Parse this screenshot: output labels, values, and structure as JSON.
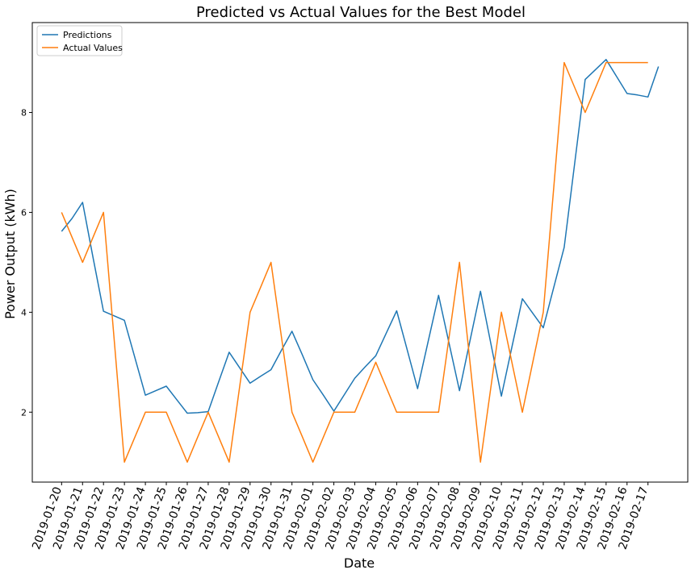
{
  "chart_data": {
    "type": "line",
    "title": "Predicted vs Actual Values for the Best Model",
    "xlabel": "Date",
    "ylabel": "Power Output (kWh)",
    "x_tick_labels": [
      "2019-01-20",
      "2019-01-21",
      "2019-01-22",
      "2019-01-23",
      "2019-01-24",
      "2019-01-25",
      "2019-01-26",
      "2019-01-27",
      "2019-01-28",
      "2019-01-29",
      "2019-01-30",
      "2019-01-31",
      "2019-02-01",
      "2019-02-02",
      "2019-02-03",
      "2019-02-04",
      "2019-02-05",
      "2019-02-06",
      "2019-02-07",
      "2019-02-08",
      "2019-02-09",
      "2019-02-10",
      "2019-02-11",
      "2019-02-12",
      "2019-02-13",
      "2019-02-14",
      "2019-02-15",
      "2019-02-16",
      "2019-02-17"
    ],
    "y_ticks": [
      2,
      4,
      6,
      8
    ],
    "ylim": [
      0.6,
      9.8
    ],
    "grid": false,
    "legend_position": "top-left",
    "series": [
      {
        "name": "Predictions",
        "color": "#1f77b4",
        "x": [
          0,
          0.5,
          1,
          1.5,
          2,
          2.5,
          3,
          3.5,
          4,
          4.5,
          5,
          5.5,
          6,
          6.5,
          7,
          7.5,
          8,
          8.5,
          9,
          9.5,
          10,
          10.5,
          11,
          11.5,
          12,
          12.5,
          13,
          13.5,
          14,
          14.5,
          15,
          15.5,
          16,
          16.5,
          17,
          17.5,
          18,
          18.5,
          19,
          19.5,
          20,
          20.5,
          21,
          21.5,
          22,
          22.5,
          23,
          23.5,
          24,
          24.5,
          25,
          25.5,
          26,
          26.5,
          27,
          27.5,
          28,
          28.5
        ],
        "values": [
          5.62,
          5.88,
          6.2,
          5.1,
          4.02,
          3.93,
          3.84,
          3.09,
          2.34,
          2.43,
          2.52,
          2.25,
          1.98,
          1.99,
          2.01,
          2.61,
          3.2,
          2.89,
          2.58,
          2.72,
          2.85,
          3.24,
          3.62,
          3.14,
          2.65,
          2.34,
          2.02,
          2.35,
          2.68,
          2.91,
          3.13,
          3.58,
          4.03,
          3.25,
          2.47,
          3.41,
          4.34,
          3.38,
          2.43,
          3.43,
          4.42,
          3.37,
          2.32,
          3.3,
          4.27,
          3.98,
          3.69,
          4.5,
          5.3,
          6.98,
          8.66,
          8.86,
          9.06,
          8.72,
          8.38,
          8.35,
          8.31,
          8.92
        ]
      },
      {
        "name": "Actual Values",
        "color": "#ff7f0e",
        "x": [
          0,
          0.5,
          1,
          1.5,
          2,
          2.5,
          3,
          3.5,
          4,
          4.5,
          5,
          5.5,
          6,
          6.5,
          7,
          7.5,
          8,
          8.5,
          9,
          9.5,
          10,
          10.5,
          11,
          11.5,
          12,
          12.5,
          13,
          13.5,
          14,
          14.5,
          15,
          15.5,
          16,
          16.5,
          17,
          17.5,
          18,
          18.5,
          19,
          19.5,
          20,
          20.5,
          21,
          21.5,
          22,
          22.5,
          23,
          23.5,
          24,
          24.5,
          25,
          25.5,
          26,
          26.5,
          27,
          27.5,
          28
        ],
        "values": [
          6,
          5.5,
          5,
          5.5,
          6,
          3.5,
          1,
          1.5,
          2,
          2,
          2,
          1.5,
          1,
          1.5,
          2,
          1.5,
          1,
          2.5,
          4,
          4.5,
          5,
          3.5,
          2,
          1.5,
          1,
          1.5,
          2,
          2,
          2,
          2.5,
          3,
          2.5,
          2,
          2,
          2,
          2,
          2,
          3.5,
          5,
          3,
          1,
          2.5,
          4,
          3,
          2,
          3,
          4,
          6.5,
          9,
          8.5,
          8,
          8.5,
          9,
          9,
          9,
          9,
          9
        ]
      }
    ]
  }
}
